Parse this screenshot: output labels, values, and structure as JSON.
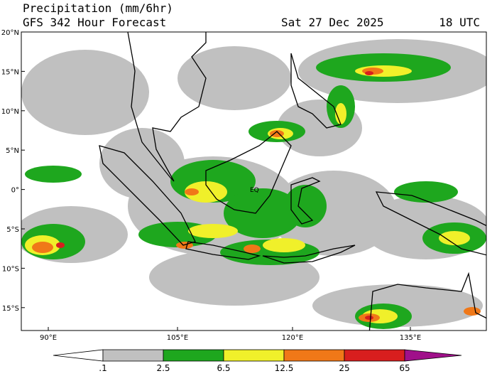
{
  "header": {
    "title": "Precipitation (mm/6hr)",
    "subtitle": "GFS 342 Hour Forecast",
    "date": "Sat 27 Dec 2025",
    "time": "18 UTC"
  },
  "map": {
    "lat_labels": [
      "20°N",
      "15°N",
      "10°N",
      "5°N",
      "0°",
      "5°S",
      "10°S",
      "15°S"
    ],
    "lon_labels": [
      "90°E",
      "105°E",
      "120°E",
      "135°E"
    ],
    "annotation": "EQ"
  },
  "colorbar": {
    "labels": [
      ".1",
      "2.5",
      "6.5",
      "12.5",
      "25",
      "65"
    ]
  }
}
